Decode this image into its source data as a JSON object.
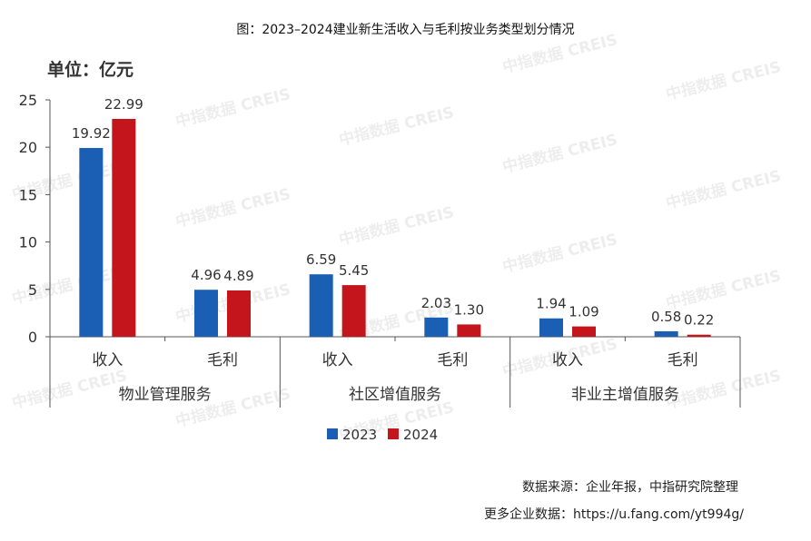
{
  "title": "图：2023–2024建业新生活收入与毛利按业务类型划分情况",
  "unit_label": "单位：亿元",
  "watermark": "中指数据 CREIS",
  "source_line": "数据来源：企业年报，中指研究院整理",
  "more_line": "更多企业数据：https://u.fang.com/yt994g/",
  "colors": {
    "2023": "#1a5fb4",
    "2024": "#c4151c",
    "axis": "#555555"
  },
  "chart_data": {
    "type": "bar",
    "ylim": [
      0,
      25
    ],
    "yticks": [
      0,
      5,
      10,
      15,
      20,
      25
    ],
    "groups": [
      {
        "name": "物业管理服务",
        "categories": [
          "收入",
          "毛利"
        ]
      },
      {
        "name": "社区增值服务",
        "categories": [
          "收入",
          "毛利"
        ]
      },
      {
        "name": "非业主增值服务",
        "categories": [
          "收入",
          "毛利"
        ]
      }
    ],
    "series": [
      {
        "name": "2023",
        "values": [
          19.92,
          4.96,
          6.59,
          2.03,
          1.94,
          0.58
        ],
        "labels": [
          "19.92",
          "4.96",
          "6.59",
          "2.03",
          "1.94",
          "0.58"
        ]
      },
      {
        "name": "2024",
        "values": [
          22.99,
          4.89,
          5.45,
          1.3,
          1.09,
          0.22
        ],
        "labels": [
          "22.99",
          "4.89",
          "5.45",
          "1.30",
          "1.09",
          "0.22"
        ]
      }
    ],
    "legend_position": "bottom-center"
  }
}
